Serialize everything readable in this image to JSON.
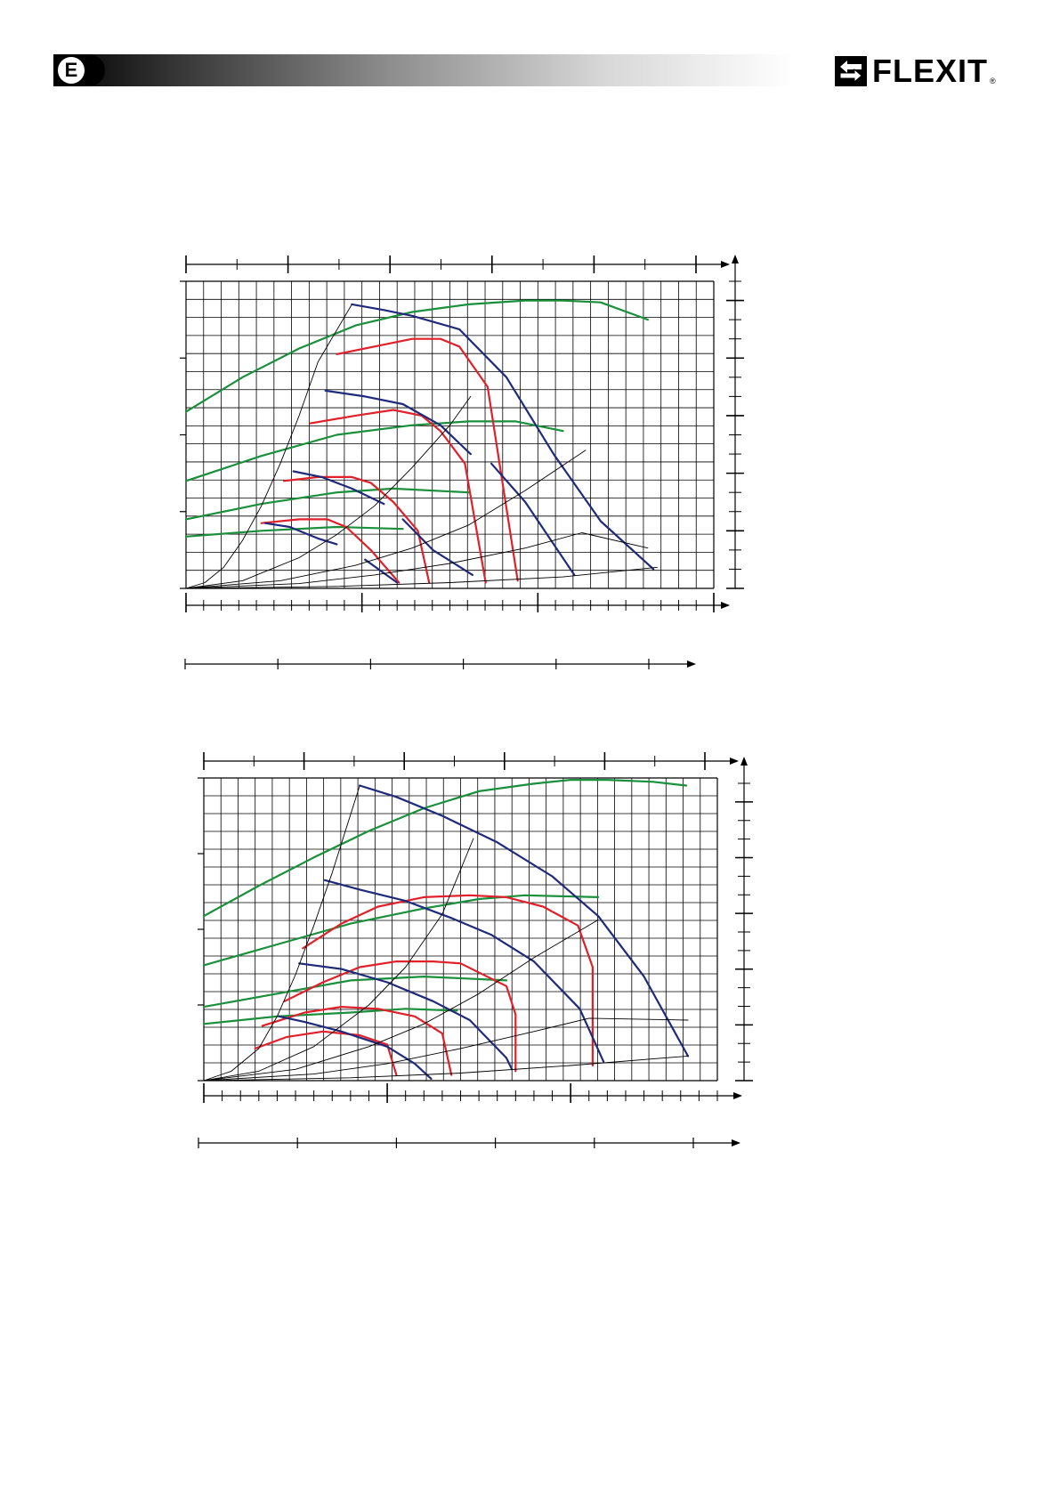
{
  "header": {
    "language_badge": "E",
    "brand_name": "FLEXIT",
    "brand_mark": "®",
    "brand_icon": "double-arrow-icon"
  },
  "colors": {
    "green": "#1a8f3c",
    "red": "#e0202a",
    "blue": "#1f2b7a",
    "grid": "#000000"
  },
  "chart_data": [
    {
      "type": "line",
      "title": "",
      "xlabel": "",
      "ylabel": "",
      "grid": true,
      "x_range": [
        0,
        28
      ],
      "y_range": [
        0,
        16
      ],
      "series": [
        {
          "color": "green",
          "x": [
            0,
            3,
            6,
            9,
            12,
            15,
            18,
            20,
            22,
            24.5
          ],
          "y": [
            9.2,
            11.0,
            12.5,
            13.7,
            14.4,
            14.8,
            15.0,
            15.0,
            14.9,
            14.0
          ]
        },
        {
          "color": "green",
          "x": [
            0,
            4,
            8,
            12,
            15,
            17.5,
            20
          ],
          "y": [
            5.6,
            6.9,
            8.0,
            8.5,
            8.7,
            8.7,
            8.2
          ]
        },
        {
          "color": "green",
          "x": [
            0,
            4,
            8,
            11,
            15
          ],
          "y": [
            3.6,
            4.4,
            5.0,
            5.2,
            5.0
          ]
        },
        {
          "color": "green",
          "x": [
            0,
            4,
            8,
            11.5
          ],
          "y": [
            2.7,
            3.0,
            3.2,
            3.1
          ]
        },
        {
          "color": "red",
          "x": [
            8,
            10,
            12,
            13.5,
            14.5,
            16,
            17.6
          ],
          "y": [
            12.2,
            12.6,
            13.0,
            13.0,
            12.6,
            10.5,
            0.4
          ]
        },
        {
          "color": "red",
          "x": [
            6.6,
            9,
            11,
            12.5,
            13.5,
            14.8,
            15.9
          ],
          "y": [
            8.6,
            9.0,
            9.3,
            9.0,
            8.2,
            6.5,
            0.3
          ]
        },
        {
          "color": "red",
          "x": [
            5.2,
            7,
            8.8,
            9.8,
            11,
            12.3,
            12.9
          ],
          "y": [
            5.6,
            5.8,
            5.8,
            5.5,
            4.5,
            3.0,
            0.3
          ]
        },
        {
          "color": "red",
          "x": [
            4,
            6,
            7.5,
            8.5,
            9.8,
            11.3
          ],
          "y": [
            3.4,
            3.6,
            3.6,
            3.2,
            2.0,
            0.3
          ]
        },
        {
          "color": "blue",
          "x": [
            8.8,
            10.5,
            12,
            14.5,
            17,
            19.5,
            22,
            24.8
          ],
          "y": [
            14.8,
            14.5,
            14.2,
            13.5,
            11.0,
            7.0,
            3.5,
            1.0
          ]
        },
        {
          "color": "blue",
          "x": [
            7.4,
            9.5,
            11.5,
            13.5,
            15.1
          ],
          "y": [
            10.3,
            10.0,
            9.6,
            8.5,
            7.0
          ]
        },
        {
          "color": "blue",
          "x": [
            16.2,
            18,
            20.6
          ],
          "y": [
            6.5,
            4.5,
            0.7
          ]
        },
        {
          "color": "blue",
          "x": [
            5.7,
            7.2,
            8.8,
            10.5
          ],
          "y": [
            6.1,
            5.8,
            5.2,
            4.4
          ]
        },
        {
          "color": "blue",
          "x": [
            11.5,
            13.1,
            15.2
          ],
          "y": [
            3.6,
            2.0,
            0.7
          ]
        },
        {
          "color": "blue",
          "x": [
            4.2,
            5.5,
            7,
            8.0
          ],
          "y": [
            3.4,
            3.2,
            2.6,
            2.3
          ]
        },
        {
          "color": "blue",
          "x": [
            9.5,
            11.2
          ],
          "y": [
            1.5,
            0.3
          ]
        },
        {
          "color": "black",
          "x": [
            0,
            1.0,
            2.0,
            3.0,
            4.0,
            5.0,
            6.0,
            7.0,
            8.8
          ],
          "y": [
            0,
            0.3,
            1.1,
            2.5,
            4.3,
            6.5,
            9.0,
            11.8,
            14.8
          ]
        },
        {
          "color": "black",
          "x": [
            0,
            3,
            6,
            8,
            10,
            12,
            14,
            15.1
          ],
          "y": [
            0,
            0.4,
            1.6,
            2.8,
            4.3,
            6.3,
            8.5,
            10.0
          ]
        },
        {
          "color": "black",
          "x": [
            0,
            5,
            9,
            12,
            15,
            18,
            21.2
          ],
          "y": [
            0,
            0.4,
            1.2,
            2.1,
            3.3,
            5.1,
            7.2
          ]
        },
        {
          "color": "black",
          "x": [
            0,
            6,
            10,
            14,
            18,
            21,
            24.5
          ],
          "y": [
            0,
            0.25,
            0.7,
            1.3,
            2.1,
            2.9,
            2.1
          ]
        },
        {
          "color": "black",
          "x": [
            0,
            8,
            14,
            20,
            25
          ],
          "y": [
            0,
            0.1,
            0.3,
            0.6,
            1.1
          ]
        }
      ]
    },
    {
      "type": "line",
      "title": "",
      "xlabel": "",
      "ylabel": "",
      "grid": true,
      "x_range": [
        0,
        28
      ],
      "y_range": [
        0,
        16
      ],
      "series": [
        {
          "color": "green",
          "x": [
            0,
            3,
            6,
            9,
            12,
            15,
            18,
            20,
            22,
            24.5,
            26.3
          ],
          "y": [
            8.7,
            10.3,
            11.8,
            13.2,
            14.4,
            15.3,
            15.7,
            15.9,
            15.9,
            15.8,
            15.6
          ]
        },
        {
          "color": "green",
          "x": [
            0,
            4,
            8,
            12,
            15,
            17.5,
            21.5
          ],
          "y": [
            6.1,
            7.2,
            8.3,
            9.1,
            9.6,
            9.8,
            9.7
          ]
        },
        {
          "color": "green",
          "x": [
            0,
            4,
            8,
            12,
            16.5
          ],
          "y": [
            3.9,
            4.6,
            5.3,
            5.5,
            5.3
          ]
        },
        {
          "color": "green",
          "x": [
            0,
            4,
            8,
            11,
            13.8
          ],
          "y": [
            3.0,
            3.4,
            3.6,
            3.8,
            3.7
          ]
        },
        {
          "color": "red",
          "x": [
            5.4,
            7.5,
            9.5,
            12,
            14.5,
            16.5,
            18.5,
            20.4,
            21.2,
            21.2
          ],
          "y": [
            7.0,
            8.3,
            9.2,
            9.7,
            9.8,
            9.7,
            9.2,
            8.2,
            6.0,
            0.8
          ]
        },
        {
          "color": "red",
          "x": [
            4.4,
            6.5,
            8.5,
            10.5,
            12.5,
            14,
            16.5,
            17,
            17.0
          ],
          "y": [
            4.2,
            5.2,
            6.0,
            6.3,
            6.3,
            6.2,
            5.0,
            3.5,
            0.5
          ]
        },
        {
          "color": "red",
          "x": [
            3.2,
            5.5,
            7.5,
            9.5,
            11.5,
            13,
            13.5
          ],
          "y": [
            2.9,
            3.6,
            3.9,
            3.8,
            3.4,
            2.5,
            0.3
          ]
        },
        {
          "color": "red",
          "x": [
            2.8,
            4.5,
            6.5,
            8.5,
            10.0,
            10.5
          ],
          "y": [
            1.7,
            2.3,
            2.6,
            2.4,
            1.9,
            0.3
          ]
        },
        {
          "color": "blue",
          "x": [
            8.5,
            10.5,
            13,
            16,
            19,
            21.5,
            24,
            26.4
          ],
          "y": [
            15.6,
            15.0,
            14.0,
            12.6,
            10.8,
            8.7,
            5.5,
            1.3
          ]
        },
        {
          "color": "blue",
          "x": [
            6.6,
            8.5,
            11,
            13.5,
            15.7,
            18,
            20.5,
            21.8
          ],
          "y": [
            10.6,
            10.1,
            9.5,
            8.6,
            7.7,
            6.3,
            3.8,
            1.0
          ]
        },
        {
          "color": "blue",
          "x": [
            5.2,
            7.5,
            10,
            12.5,
            14.5,
            16.5,
            16.8
          ],
          "y": [
            6.2,
            5.9,
            5.2,
            4.2,
            3.2,
            1.2,
            0.6
          ]
        },
        {
          "color": "blue",
          "x": [
            4.1,
            5.5,
            7.5,
            10,
            11.5,
            12.4
          ],
          "y": [
            3.4,
            3.1,
            2.6,
            1.8,
            0.9,
            0.1
          ]
        },
        {
          "color": "black",
          "x": [
            0,
            1.5,
            3.0,
            4.0,
            5.0,
            6.0,
            7.0,
            8.5
          ],
          "y": [
            0,
            0.5,
            1.7,
            3.4,
            5.6,
            8.2,
            11.0,
            15.6
          ]
        },
        {
          "color": "black",
          "x": [
            0,
            3,
            6,
            9,
            11,
            13,
            14.7
          ],
          "y": [
            0,
            0.5,
            1.8,
            4.0,
            6.0,
            8.8,
            12.8
          ]
        },
        {
          "color": "black",
          "x": [
            0,
            5,
            9,
            12,
            15,
            18,
            21.5
          ],
          "y": [
            0,
            0.6,
            1.8,
            3.0,
            4.6,
            6.5,
            8.5
          ]
        },
        {
          "color": "black",
          "x": [
            0,
            6,
            10,
            14,
            18,
            21,
            26.4
          ],
          "y": [
            0,
            0.35,
            0.9,
            1.7,
            2.6,
            3.3,
            3.2
          ]
        },
        {
          "color": "black",
          "x": [
            0,
            8,
            14,
            20,
            26.4
          ],
          "y": [
            0,
            0.15,
            0.4,
            0.8,
            1.3
          ]
        }
      ]
    }
  ]
}
